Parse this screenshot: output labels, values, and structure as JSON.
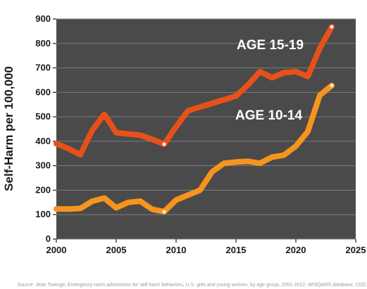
{
  "chart_data": {
    "type": "line",
    "ylabel": "Self-Harm per 100,000",
    "xlim": [
      2000,
      2025
    ],
    "ylim": [
      0,
      900
    ],
    "x_ticks": [
      "2000",
      "2005",
      "2010",
      "2015",
      "2020",
      "2025"
    ],
    "y_ticks": [
      "0",
      "100",
      "200",
      "300",
      "400",
      "500",
      "600",
      "700",
      "800",
      "900"
    ],
    "grid": true,
    "background": "#4a4a4a",
    "series": [
      {
        "name": "AGE 15-19",
        "color": "#e8501a",
        "x": [
          2000,
          2001,
          2002,
          2003,
          2004,
          2005,
          2006,
          2007,
          2008,
          2009,
          2010,
          2011,
          2012,
          2013,
          2014,
          2015,
          2016,
          2017,
          2018,
          2019,
          2020,
          2021,
          2022,
          2023
        ],
        "values": [
          390,
          370,
          345,
          445,
          510,
          435,
          430,
          425,
          408,
          388,
          460,
          525,
          540,
          555,
          570,
          585,
          630,
          685,
          660,
          680,
          685,
          665,
          780,
          868
        ]
      },
      {
        "name": "AGE 10-14",
        "color": "#f7941d",
        "x": [
          2000,
          2001,
          2002,
          2003,
          2004,
          2005,
          2006,
          2007,
          2008,
          2009,
          2010,
          2011,
          2012,
          2013,
          2014,
          2015,
          2016,
          2017,
          2018,
          2019,
          2020,
          2021,
          2022,
          2023
        ],
        "values": [
          123,
          123,
          125,
          155,
          168,
          128,
          150,
          155,
          122,
          112,
          160,
          180,
          200,
          275,
          310,
          315,
          318,
          310,
          335,
          343,
          380,
          440,
          588,
          628
        ]
      }
    ]
  },
  "source": "Source: Jean Twenge; Emergency room admissions for self-harm behaviors, U.S. girls and young women, by age group, 2001-2022. WISQARS database, CDC"
}
